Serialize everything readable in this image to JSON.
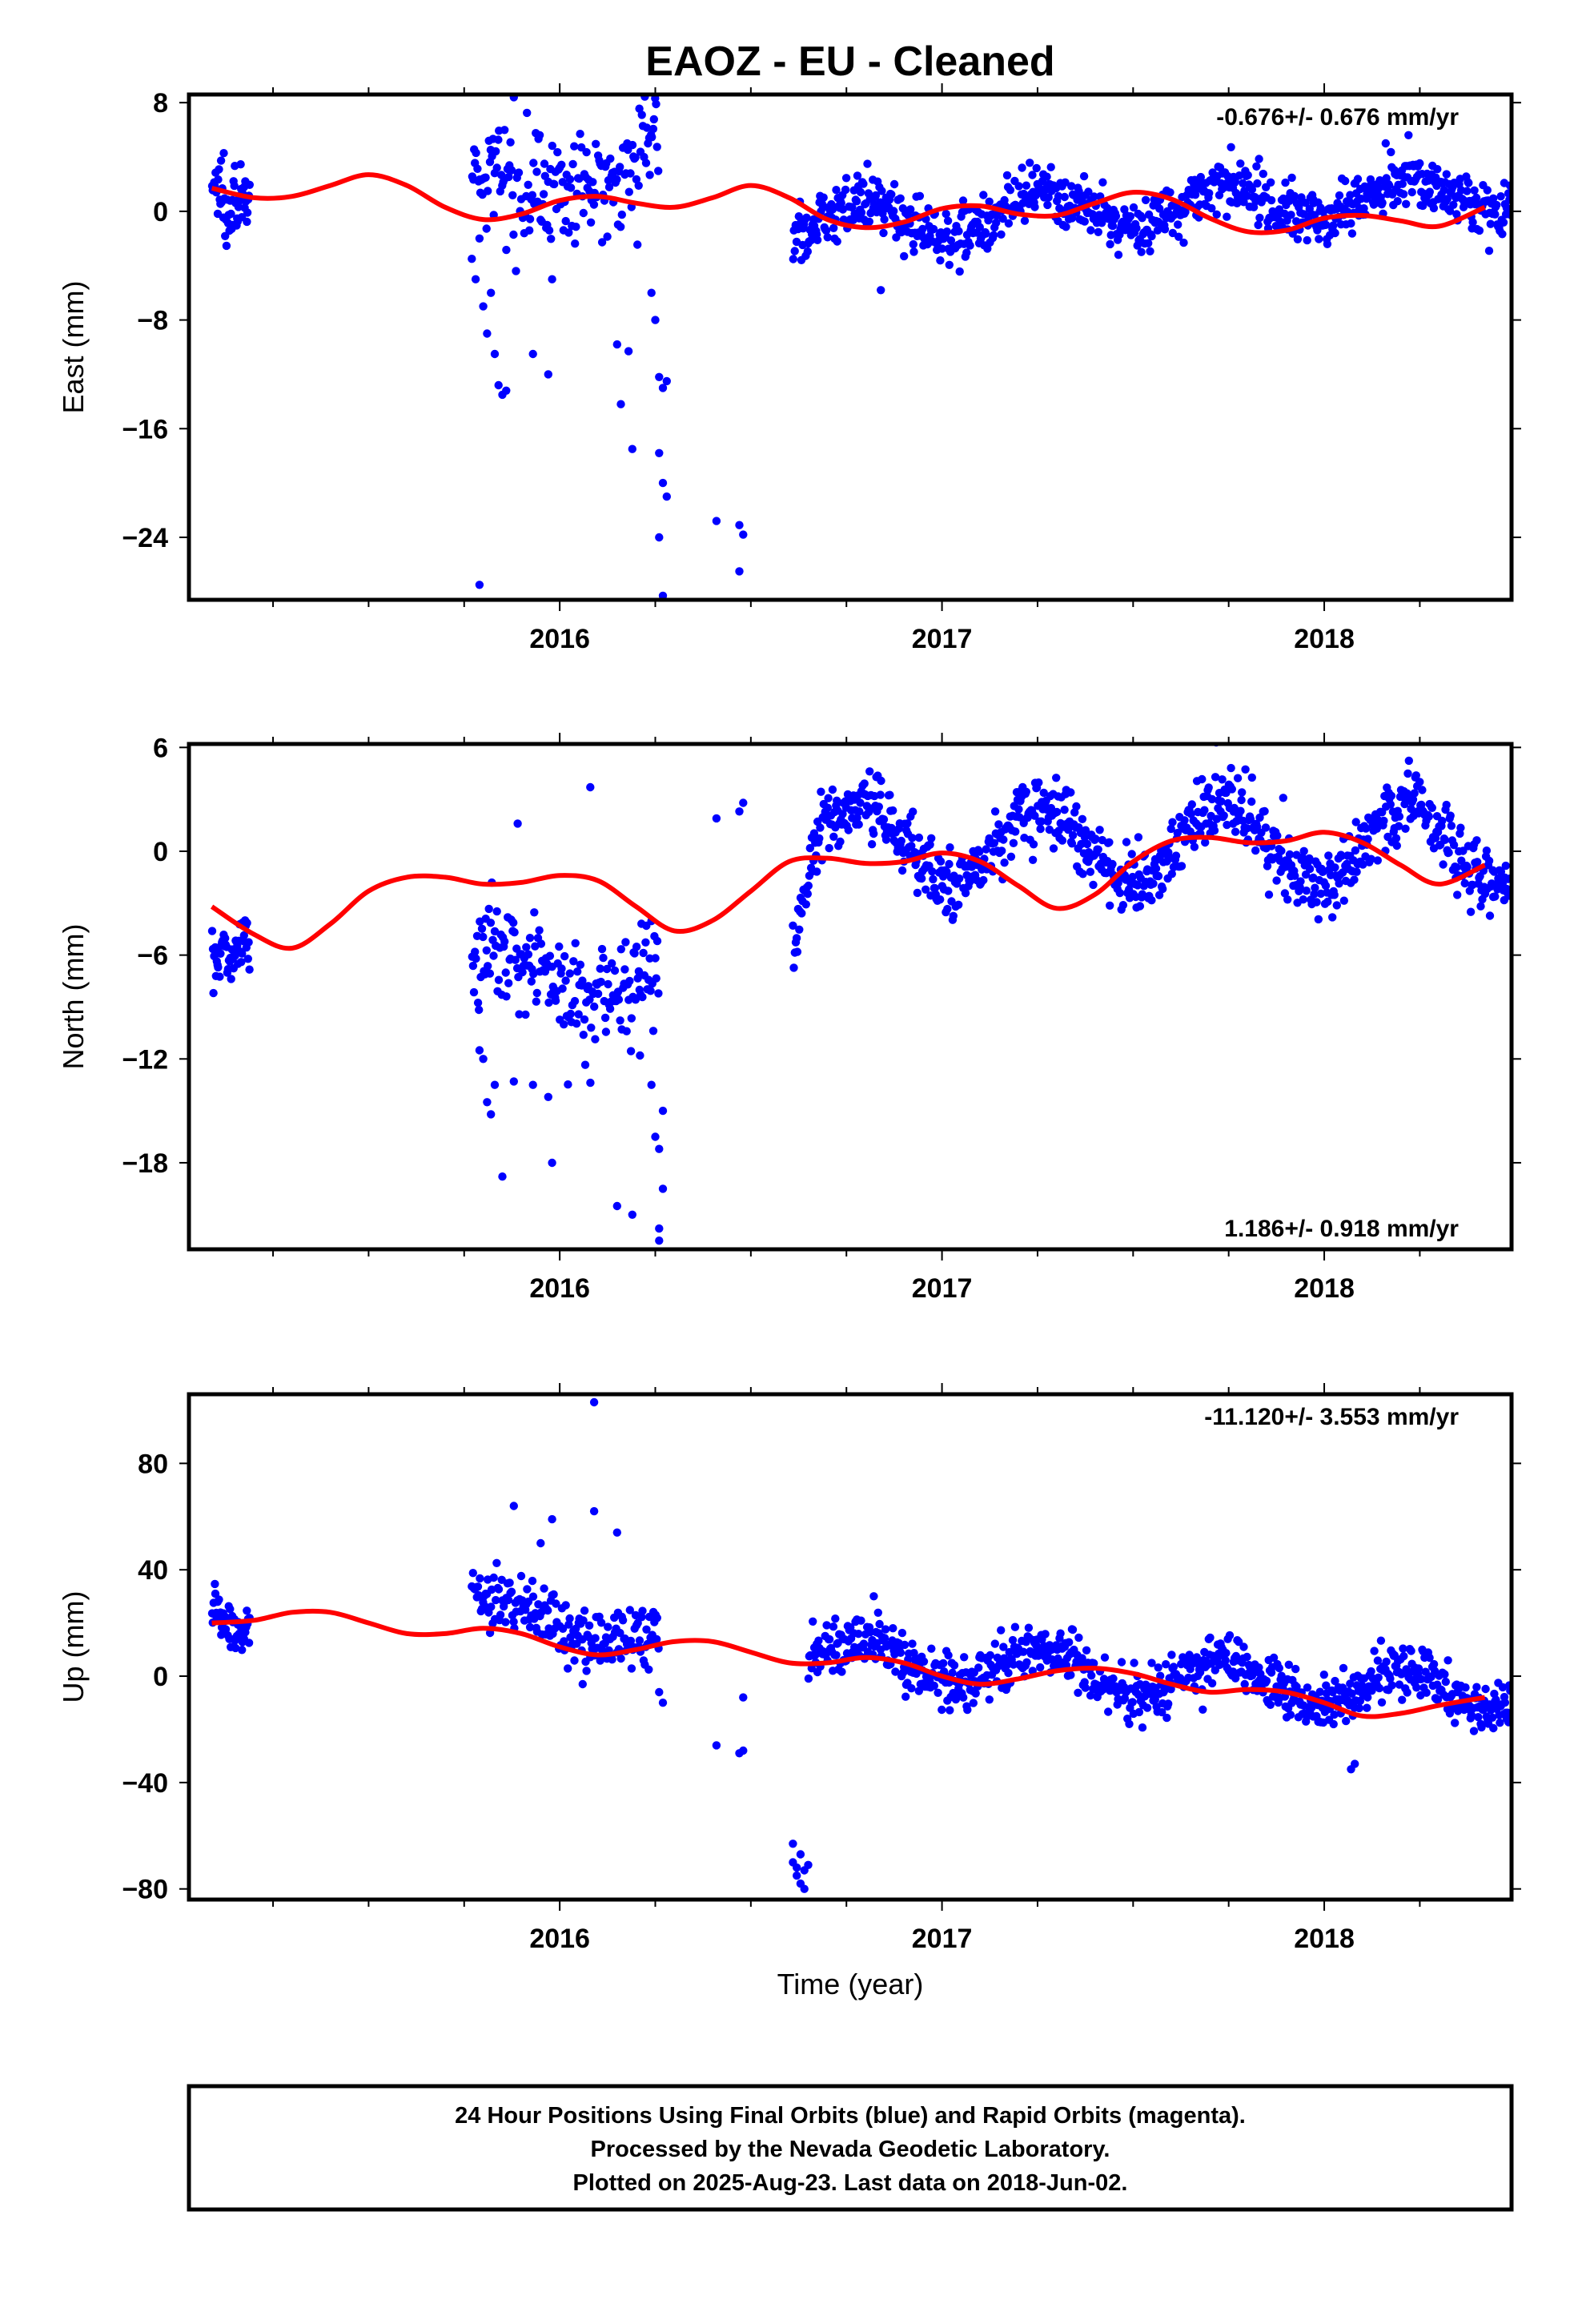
{
  "title": "EAOZ  - EU - Cleaned",
  "xlabel": "Time (year)",
  "footer": {
    "line1": "24 Hour Positions Using Final Orbits (blue) and Rapid Orbits (magenta).",
    "line2": "Processed by the Nevada Geodetic Laboratory.",
    "line3": "Plotted on 2025-Aug-23. Last data on 2018-Jun-02."
  },
  "colors": {
    "points": "#0000ff",
    "fit": "#ff0000",
    "frame": "#000000"
  },
  "chart_data": [
    {
      "type": "scatter",
      "panel": "east",
      "ylabel": "East (mm)",
      "rate": "-0.676+/- 0.676 mm/yr",
      "rate_position": "top-right",
      "xlim": [
        2015.03,
        2018.49
      ],
      "ylim": [
        -28.6,
        8.6
      ],
      "yticks": [
        8,
        0,
        -8,
        -16,
        -24
      ],
      "xticks": [
        2016,
        2017,
        2018
      ],
      "series": [
        {
          "role": "daily positions",
          "segments": [
            {
              "x": [
                2015.09,
                2015.19
              ],
              "mean": 2.2,
              "trend": [
                3.0,
                1.5
              ],
              "amp": 1.2,
              "sd": 1.5,
              "n": 55
            },
            {
              "x": [
                2015.77,
                2016.26
              ],
              "mean": 2.0,
              "trend": [
                0.5,
                4.5
              ],
              "amp": 1.5,
              "sd": 2.0,
              "n": 180
            },
            {
              "x": [
                2016.61,
                2018.49
              ],
              "mean": -0.5,
              "trend": [
                -1.0,
                1.5
              ],
              "amp": 1.3,
              "sd": 1.0,
              "n": 850
            }
          ],
          "outliers": [
            [
              2015.77,
              -3.5
            ],
            [
              2015.78,
              -5.0
            ],
            [
              2015.79,
              -2.0
            ],
            [
              2015.8,
              -7.0
            ],
            [
              2015.81,
              -9.0
            ],
            [
              2015.82,
              -6.0
            ],
            [
              2015.83,
              -10.5
            ],
            [
              2015.84,
              -12.8
            ],
            [
              2015.85,
              -13.5
            ],
            [
              2015.86,
              -13.2
            ],
            [
              2015.79,
              -27.5
            ],
            [
              2015.93,
              -10.5
            ],
            [
              2015.97,
              -12.0
            ],
            [
              2015.98,
              -5.0
            ],
            [
              2015.96,
              3.5
            ],
            [
              2015.88,
              8.4
            ],
            [
              2016.15,
              -9.8
            ],
            [
              2016.16,
              -14.2
            ],
            [
              2016.18,
              -10.3
            ],
            [
              2016.19,
              -17.5
            ],
            [
              2016.24,
              -6.0
            ],
            [
              2016.25,
              -8.0
            ],
            [
              2016.26,
              -12.2
            ],
            [
              2016.27,
              -13.0
            ],
            [
              2016.26,
              -17.8
            ],
            [
              2016.27,
              -20.0
            ],
            [
              2016.28,
              -21.0
            ],
            [
              2016.26,
              -24.0
            ],
            [
              2016.27,
              -28.3
            ],
            [
              2016.28,
              -12.5
            ],
            [
              2016.41,
              -22.8
            ],
            [
              2016.47,
              -26.5
            ],
            [
              2016.47,
              -23.1
            ],
            [
              2016.48,
              -23.8
            ],
            [
              2016.84,
              -5.8
            ]
          ]
        },
        {
          "role": "seasonal fit",
          "x": [
            2015.09,
            2015.2,
            2015.3,
            2015.4,
            2015.5,
            2015.6,
            2015.7,
            2015.8,
            2015.9,
            2016.0,
            2016.1,
            2016.2,
            2016.3,
            2016.4,
            2016.5,
            2016.6,
            2016.7,
            2016.8,
            2016.9,
            2017.0,
            2017.1,
            2017.2,
            2017.3,
            2017.4,
            2017.5,
            2017.6,
            2017.7,
            2017.8,
            2017.9,
            2018.0,
            2018.1,
            2018.2,
            2018.3,
            2018.42
          ],
          "y": [
            1.7,
            1.0,
            1.1,
            1.9,
            2.7,
            1.9,
            0.3,
            -0.6,
            -0.2,
            0.8,
            1.1,
            0.6,
            0.3,
            1.0,
            1.9,
            1.0,
            -0.6,
            -1.2,
            -0.8,
            0.2,
            0.4,
            -0.2,
            -0.3,
            0.6,
            1.4,
            0.9,
            -0.5,
            -1.5,
            -1.4,
            -0.5,
            -0.3,
            -0.7,
            -1.1,
            0.3
          ]
        }
      ]
    },
    {
      "type": "scatter",
      "panel": "north",
      "ylabel": "North (mm)",
      "rate": "1.186+/- 0.918 mm/yr",
      "rate_position": "bottom-right",
      "xlim": [
        2015.03,
        2018.49
      ],
      "ylim": [
        -23.0,
        6.2
      ],
      "yticks": [
        6,
        0,
        -6,
        -12,
        -18
      ],
      "xticks": [
        2016,
        2017,
        2018
      ],
      "series": [
        {
          "role": "daily positions",
          "segments": [
            {
              "x": [
                2015.09,
                2015.19
              ],
              "mean": -5.5,
              "trend": [
                -5.5,
                -4.5
              ],
              "amp": 0.8,
              "sd": 1.0,
              "n": 50
            },
            {
              "x": [
                2015.77,
                2016.26
              ],
              "mean": -6.5,
              "trend": [
                -6.5,
                -7.5
              ],
              "amp": 1.0,
              "sd": 1.6,
              "n": 190
            },
            {
              "x": [
                2016.61,
                2016.65
              ],
              "mean": -4.0,
              "trend": [
                -5.0,
                -2.0
              ],
              "amp": 0.3,
              "sd": 0.9,
              "n": 18
            },
            {
              "x": [
                2016.65,
                2018.49
              ],
              "mean": 0.3,
              "trend": [
                0.5,
                0.3
              ],
              "amp": 2.2,
              "sd": 1.0,
              "n": 840
            }
          ],
          "outliers": [
            [
              2015.79,
              -11.5
            ],
            [
              2015.8,
              -12.0
            ],
            [
              2015.81,
              -14.5
            ],
            [
              2015.82,
              -15.2
            ],
            [
              2015.83,
              -13.5
            ],
            [
              2015.85,
              -18.8
            ],
            [
              2015.88,
              -13.3
            ],
            [
              2015.93,
              -13.5
            ],
            [
              2015.97,
              -14.2
            ],
            [
              2015.98,
              -18.0
            ],
            [
              2015.89,
              1.6
            ],
            [
              2016.08,
              3.7
            ],
            [
              2016.15,
              -20.5
            ],
            [
              2016.19,
              -21.0
            ],
            [
              2016.21,
              -11.8
            ],
            [
              2016.24,
              -13.5
            ],
            [
              2016.25,
              -16.5
            ],
            [
              2016.26,
              -21.8
            ],
            [
              2016.26,
              -22.5
            ],
            [
              2016.26,
              -17.2
            ],
            [
              2016.27,
              -19.5
            ],
            [
              2016.27,
              -15.0
            ],
            [
              2016.41,
              1.9
            ],
            [
              2016.47,
              2.3
            ],
            [
              2016.48,
              2.8
            ]
          ]
        },
        {
          "role": "seasonal fit",
          "x": [
            2015.09,
            2015.2,
            2015.3,
            2015.4,
            2015.5,
            2015.6,
            2015.7,
            2015.8,
            2015.9,
            2016.0,
            2016.1,
            2016.2,
            2016.3,
            2016.4,
            2016.5,
            2016.6,
            2016.7,
            2016.8,
            2016.9,
            2017.0,
            2017.1,
            2017.2,
            2017.3,
            2017.4,
            2017.5,
            2017.6,
            2017.7,
            2017.8,
            2017.9,
            2018.0,
            2018.1,
            2018.2,
            2018.3,
            2018.42
          ],
          "y": [
            -3.2,
            -4.8,
            -5.6,
            -4.2,
            -2.3,
            -1.5,
            -1.5,
            -1.9,
            -1.8,
            -1.4,
            -1.7,
            -3.2,
            -4.6,
            -4.0,
            -2.3,
            -0.6,
            -0.4,
            -0.7,
            -0.6,
            -0.1,
            -0.6,
            -2.0,
            -3.3,
            -2.5,
            -0.6,
            0.6,
            0.8,
            0.5,
            0.6,
            1.1,
            0.5,
            -0.8,
            -1.9,
            -0.8
          ]
        }
      ]
    },
    {
      "type": "scatter",
      "panel": "up",
      "ylabel": "Up (mm)",
      "rate": "-11.120+/- 3.553 mm/yr",
      "rate_position": "top-right",
      "xlim": [
        2015.03,
        2018.49
      ],
      "ylim": [
        -84,
        106
      ],
      "yticks": [
        80,
        40,
        0,
        -40,
        -80
      ],
      "xticks": [
        2016,
        2017,
        2018
      ],
      "series": [
        {
          "role": "daily positions",
          "segments": [
            {
              "x": [
                2015.09,
                2015.19
              ],
              "mean": 24.0,
              "trend": [
                30.0,
                18.0
              ],
              "amp": 4.0,
              "sd": 4.5,
              "n": 55
            },
            {
              "x": [
                2015.77,
                2016.26
              ],
              "mean": 20.0,
              "trend": [
                28.0,
                12.0
              ],
              "amp": 4.0,
              "sd": 6.0,
              "n": 190
            },
            {
              "x": [
                2016.65,
                2018.49
              ],
              "mean": 0.0,
              "trend": [
                8.0,
                -8.0
              ],
              "amp": 7.0,
              "sd": 5.0,
              "n": 840
            }
          ],
          "outliers": [
            [
              2015.88,
              64.0
            ],
            [
              2015.95,
              50.0
            ],
            [
              2015.98,
              59.0
            ],
            [
              2016.09,
              103.0
            ],
            [
              2016.09,
              62.0
            ],
            [
              2016.15,
              54.0
            ],
            [
              2016.06,
              -3.0
            ],
            [
              2016.27,
              -10.0
            ],
            [
              2016.26,
              -6.0
            ],
            [
              2016.41,
              -26.0
            ],
            [
              2016.47,
              -29.0
            ],
            [
              2016.48,
              -28.0
            ],
            [
              2016.48,
              -8.0
            ],
            [
              2016.61,
              -63.0
            ],
            [
              2016.61,
              -70.0
            ],
            [
              2016.62,
              -72.0
            ],
            [
              2016.62,
              -75.0
            ],
            [
              2016.63,
              -67.0
            ],
            [
              2016.63,
              -78.0
            ],
            [
              2016.64,
              -80.0
            ],
            [
              2016.64,
              -73.0
            ],
            [
              2016.65,
              -71.0
            ],
            [
              2018.07,
              -35.0
            ],
            [
              2018.08,
              -33.0
            ]
          ]
        },
        {
          "role": "seasonal fit",
          "x": [
            2015.09,
            2015.2,
            2015.3,
            2015.4,
            2015.5,
            2015.6,
            2015.7,
            2015.8,
            2015.9,
            2016.0,
            2016.1,
            2016.2,
            2016.3,
            2016.4,
            2016.5,
            2016.6,
            2016.7,
            2016.8,
            2016.9,
            2017.0,
            2017.1,
            2017.2,
            2017.3,
            2017.4,
            2017.5,
            2017.6,
            2017.7,
            2017.8,
            2017.9,
            2018.0,
            2018.1,
            2018.2,
            2018.3,
            2018.42
          ],
          "y": [
            20.0,
            21.0,
            24.0,
            24.0,
            20.0,
            16.0,
            16.0,
            18.0,
            16.0,
            11.0,
            8.0,
            10.0,
            13.0,
            13.0,
            9.0,
            5.0,
            5.0,
            7.0,
            5.0,
            0.0,
            -3.0,
            -1.0,
            2.0,
            3.0,
            1.0,
            -3.0,
            -6.0,
            -5.0,
            -6.0,
            -10.0,
            -15.0,
            -14.0,
            -11.0,
            -8.0
          ]
        }
      ]
    }
  ]
}
